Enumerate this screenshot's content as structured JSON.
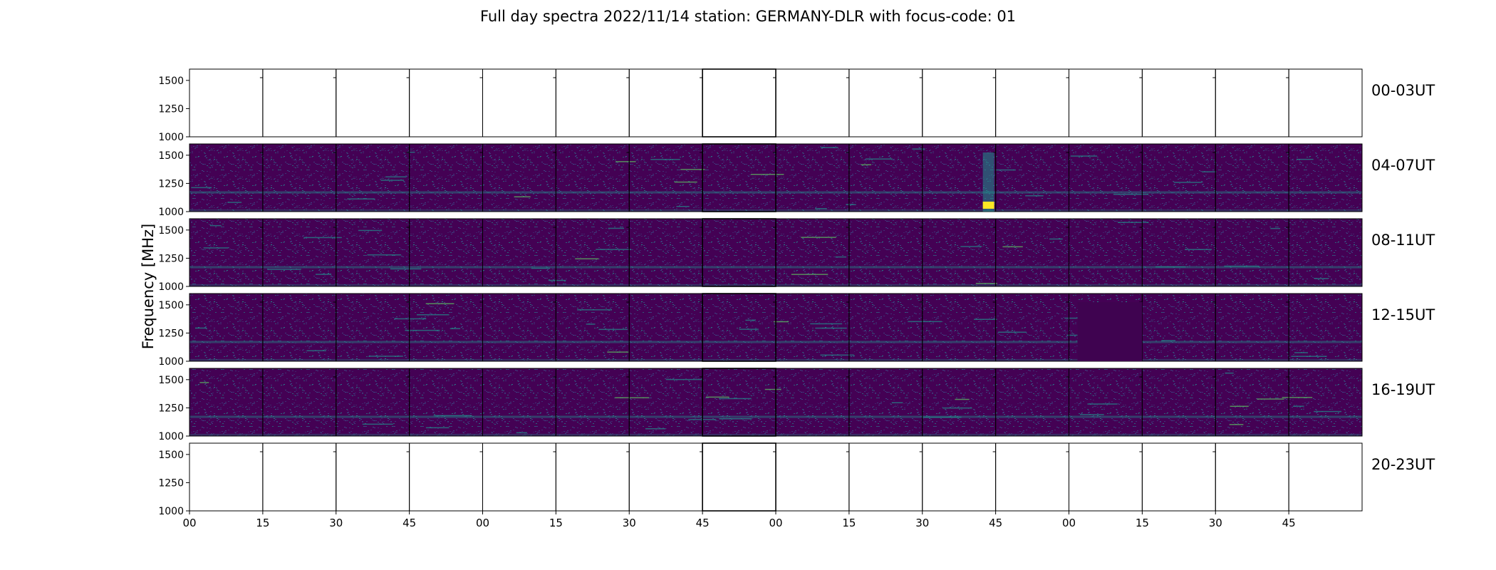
{
  "chart_data": {
    "type": "heatmap",
    "title": "Full day spectra 2022/11/14 station: GERMANY-DLR with focus-code: 01",
    "ylabel": "Frequency [MHz]",
    "xlabel": "",
    "y_ticks": [
      "1000",
      "1250",
      "1500"
    ],
    "ylim": [
      1000,
      1600
    ],
    "x_ticks": [
      "00",
      "15",
      "30",
      "45",
      "00",
      "15",
      "30",
      "45",
      "00",
      "15",
      "30",
      "45",
      "00",
      "15",
      "30",
      "45"
    ],
    "segments_per_row": 16,
    "segment_minutes": 15,
    "colormap": [
      "#440154",
      "#3b528b",
      "#21918c",
      "#5ec962",
      "#fde725"
    ],
    "rows": [
      {
        "label": "00-03UT",
        "has_data": false
      },
      {
        "label": "04-07UT",
        "has_data": true
      },
      {
        "label": "08-11UT",
        "has_data": true
      },
      {
        "label": "12-15UT",
        "has_data": true
      },
      {
        "label": "16-19UT",
        "has_data": true
      },
      {
        "label": "20-23UT",
        "has_data": false
      }
    ]
  }
}
